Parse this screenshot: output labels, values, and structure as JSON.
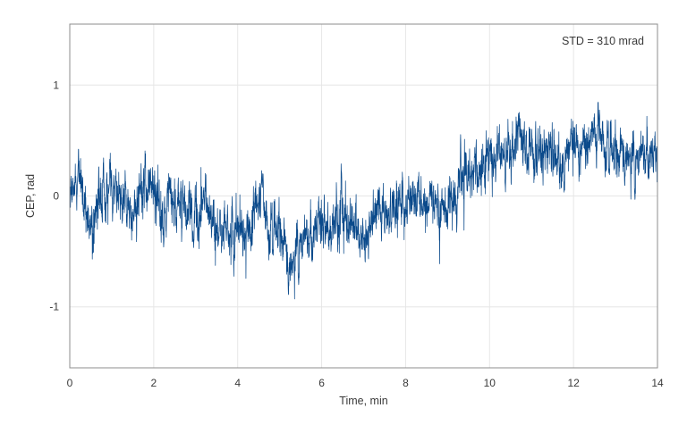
{
  "chart_data": {
    "type": "line",
    "title": "",
    "xlabel": "Time, min",
    "ylabel": "CEP, rad",
    "xlim": [
      0,
      14
    ],
    "ylim": [
      -1.55,
      1.55
    ],
    "x_ticks": [
      0,
      2,
      4,
      6,
      8,
      10,
      12,
      14
    ],
    "x_tick_labels": [
      "0",
      "2",
      "4",
      "6",
      "8",
      "10",
      "12",
      "14"
    ],
    "y_ticks": [
      -1,
      0,
      1
    ],
    "y_tick_labels": [
      "-1",
      "0",
      "1"
    ],
    "grid": true,
    "legend": "none",
    "annotation": "STD = 310 mrad",
    "colors": {
      "series": "#0b4a8b",
      "grid": "#e6e6e6",
      "frame": "#8c8c8c"
    },
    "series": [
      {
        "x": [
          0,
          0.25,
          0.5,
          0.75,
          1,
          1.25,
          1.5,
          1.75,
          2,
          2.25,
          2.5,
          2.75,
          3,
          3.25,
          3.5,
          3.75,
          4,
          4.25,
          4.5,
          4.75,
          5,
          5.25,
          5.5,
          5.75,
          6,
          6.25,
          6.5,
          6.75,
          7,
          7.25,
          7.5,
          7.75,
          8,
          8.25,
          8.5,
          8.75,
          9,
          9.25,
          9.5,
          9.75,
          10,
          10.25,
          10.5,
          10.75,
          11,
          11.25,
          11.5,
          11.75,
          12,
          12.25,
          12.5,
          12.75,
          13,
          13.25,
          13.5,
          13.75,
          14
        ],
        "y": [
          0.05,
          0.15,
          -0.3,
          0.05,
          0.0,
          0.0,
          -0.15,
          0.0,
          0.1,
          -0.2,
          -0.05,
          -0.1,
          -0.25,
          0.0,
          -0.3,
          -0.25,
          -0.3,
          -0.35,
          -0.05,
          -0.3,
          -0.35,
          -0.6,
          -0.45,
          -0.35,
          -0.2,
          -0.3,
          -0.2,
          -0.25,
          -0.45,
          -0.15,
          -0.2,
          -0.1,
          -0.05,
          0.0,
          -0.1,
          -0.15,
          -0.05,
          0.05,
          0.15,
          0.2,
          0.25,
          0.3,
          0.35,
          0.45,
          0.4,
          0.35,
          0.45,
          0.35,
          0.45,
          0.4,
          0.55,
          0.45,
          0.35,
          0.4,
          0.3,
          0.4,
          0.35
        ]
      }
    ]
  }
}
